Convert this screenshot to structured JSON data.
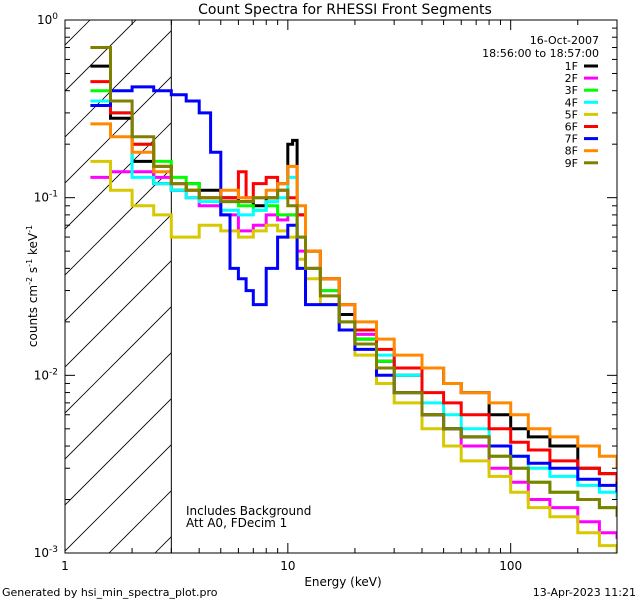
{
  "chart_data": {
    "type": "line",
    "title": "Count Spectra for RHESSI Front Segments",
    "xlabel": "Energy (keV)",
    "ylabel": {
      "prefix": "counts cm",
      "exp1": "-2",
      "mid": " s",
      "exp2": "-1",
      "mid2": " keV",
      "exp3": "-1"
    },
    "xscale": "log",
    "yscale": "log",
    "xlim": [
      1.0,
      300.0
    ],
    "ylim": [
      0.001,
      1.0
    ],
    "x_ticks": [
      {
        "value": 1,
        "label": "1"
      },
      {
        "value": 10,
        "label": "10"
      },
      {
        "value": 100,
        "label": "100"
      }
    ],
    "y_ticks": [
      {
        "value": 1.0,
        "base": "10",
        "exp": "0"
      },
      {
        "value": 0.1,
        "base": "10",
        "exp": "-1"
      },
      {
        "value": 0.01,
        "base": "10",
        "exp": "-2"
      },
      {
        "value": 0.001,
        "base": "10",
        "exp": "-3"
      }
    ],
    "date": "16-Oct-2007",
    "time_range": "18:56:00 to 18:57:00",
    "annotations": [
      "Includes Background",
      "Att A0, FDecim 1"
    ],
    "shaded_region": {
      "from": 1.0,
      "to": 3.0,
      "pattern": "diagonal hatch",
      "boundary_line_at": 3.0
    },
    "legend_position": "top-right",
    "series": [
      {
        "name": "1F",
        "color": "#000000",
        "x": [
          1.3,
          1.6,
          2.0,
          2.5,
          3.0,
          3.5,
          4.0,
          5.0,
          6.0,
          7.0,
          8.0,
          9.0,
          10.0,
          10.5,
          11.0,
          12.0,
          14.0,
          17.0,
          20.0,
          25.0,
          30.0,
          40.0,
          50.0,
          60.0,
          80.0,
          100.0,
          120.0,
          150.0,
          200.0,
          250.0,
          300.0
        ],
        "y": [
          0.55,
          0.28,
          0.16,
          0.12,
          0.11,
          0.12,
          0.11,
          0.1,
          0.095,
          0.09,
          0.1,
          0.12,
          0.2,
          0.21,
          0.08,
          0.05,
          0.035,
          0.022,
          0.016,
          0.012,
          0.01,
          0.011,
          0.009,
          0.008,
          0.006,
          0.005,
          0.0045,
          0.004,
          0.003,
          0.0028,
          0.0024
        ]
      },
      {
        "name": "2F",
        "color": "#ff00ff",
        "x": [
          1.3,
          1.6,
          2.0,
          2.5,
          3.0,
          3.5,
          4.0,
          5.0,
          6.0,
          7.0,
          8.0,
          9.0,
          10.0,
          11.0,
          12.0,
          14.0,
          17.0,
          20.0,
          25.0,
          30.0,
          40.0,
          50.0,
          60.0,
          80.0,
          100.0,
          120.0,
          150.0,
          200.0,
          250.0,
          300.0
        ],
        "y": [
          0.13,
          0.14,
          0.14,
          0.13,
          0.12,
          0.1,
          0.09,
          0.08,
          0.065,
          0.07,
          0.08,
          0.075,
          0.08,
          0.05,
          0.04,
          0.03,
          0.025,
          0.017,
          0.012,
          0.008,
          0.006,
          0.005,
          0.004,
          0.003,
          0.0025,
          0.002,
          0.0018,
          0.0015,
          0.0013,
          0.0012
        ]
      },
      {
        "name": "3F",
        "color": "#00ff00",
        "x": [
          1.3,
          1.6,
          2.0,
          2.5,
          3.0,
          3.5,
          4.0,
          5.0,
          6.0,
          7.0,
          8.0,
          9.0,
          10.0,
          11.0,
          12.0,
          14.0,
          17.0,
          20.0,
          25.0,
          30.0,
          40.0,
          50.0,
          60.0,
          80.0,
          100.0,
          120.0,
          150.0,
          200.0,
          250.0,
          300.0
        ],
        "y": [
          0.4,
          0.3,
          0.2,
          0.16,
          0.13,
          0.12,
          0.1,
          0.095,
          0.09,
          0.085,
          0.09,
          0.08,
          0.08,
          0.06,
          0.04,
          0.03,
          0.02,
          0.016,
          0.012,
          0.008,
          0.006,
          0.005,
          0.0045,
          0.0035,
          0.003,
          0.0025,
          0.0022,
          0.002,
          0.0018,
          0.0016
        ]
      },
      {
        "name": "4F",
        "color": "#00ffff",
        "x": [
          1.3,
          1.6,
          2.0,
          2.5,
          3.0,
          3.5,
          4.0,
          5.0,
          6.0,
          7.0,
          8.0,
          9.0,
          10.0,
          11.0,
          12.0,
          14.0,
          17.0,
          20.0,
          25.0,
          30.0,
          40.0,
          50.0,
          60.0,
          80.0,
          100.0,
          120.0,
          150.0,
          200.0,
          250.0,
          300.0
        ],
        "y": [
          0.35,
          0.3,
          0.13,
          0.12,
          0.11,
          0.1,
          0.095,
          0.085,
          0.08,
          0.085,
          0.095,
          0.1,
          0.13,
          0.08,
          0.05,
          0.035,
          0.025,
          0.018,
          0.013,
          0.01,
          0.007,
          0.006,
          0.005,
          0.004,
          0.0035,
          0.003,
          0.0027,
          0.0024,
          0.0022,
          0.002
        ]
      },
      {
        "name": "5F",
        "color": "#d8c800",
        "x": [
          1.3,
          1.6,
          2.0,
          2.5,
          3.0,
          3.5,
          4.0,
          5.0,
          6.0,
          7.0,
          8.0,
          9.0,
          10.0,
          11.0,
          12.0,
          14.0,
          17.0,
          20.0,
          25.0,
          30.0,
          40.0,
          50.0,
          60.0,
          80.0,
          100.0,
          120.0,
          150.0,
          200.0,
          250.0,
          300.0
        ],
        "y": [
          0.16,
          0.11,
          0.09,
          0.08,
          0.06,
          0.06,
          0.07,
          0.065,
          0.06,
          0.065,
          0.07,
          0.065,
          0.06,
          0.045,
          0.035,
          0.025,
          0.018,
          0.013,
          0.009,
          0.007,
          0.005,
          0.004,
          0.0033,
          0.0027,
          0.0022,
          0.0018,
          0.0016,
          0.0013,
          0.0011,
          0.001
        ]
      },
      {
        "name": "6F",
        "color": "#ff0000",
        "x": [
          1.3,
          1.6,
          2.0,
          2.5,
          3.0,
          3.5,
          4.0,
          5.0,
          6.0,
          6.5,
          7.0,
          8.0,
          9.0,
          10.0,
          11.0,
          12.0,
          14.0,
          17.0,
          20.0,
          25.0,
          30.0,
          40.0,
          50.0,
          60.0,
          80.0,
          100.0,
          120.0,
          150.0,
          200.0,
          250.0,
          300.0
        ],
        "y": [
          0.45,
          0.3,
          0.2,
          0.15,
          0.12,
          0.11,
          0.1,
          0.1,
          0.14,
          0.1,
          0.12,
          0.13,
          0.11,
          0.1,
          0.08,
          0.05,
          0.035,
          0.025,
          0.018,
          0.014,
          0.011,
          0.008,
          0.007,
          0.006,
          0.005,
          0.0042,
          0.0038,
          0.0033,
          0.003,
          0.0028,
          0.0025
        ]
      },
      {
        "name": "7F",
        "color": "#0000ff",
        "x": [
          1.3,
          1.6,
          2.0,
          2.5,
          3.0,
          3.5,
          4.0,
          4.5,
          5.0,
          5.5,
          6.0,
          6.5,
          7.0,
          8.0,
          9.0,
          10.0,
          11.0,
          12.0,
          14.0,
          17.0,
          20.0,
          25.0,
          30.0,
          40.0,
          50.0,
          60.0,
          80.0,
          100.0,
          120.0,
          150.0,
          200.0,
          250.0,
          300.0
        ],
        "y": [
          0.33,
          0.4,
          0.42,
          0.4,
          0.38,
          0.35,
          0.3,
          0.18,
          0.08,
          0.04,
          0.035,
          0.03,
          0.025,
          0.04,
          0.06,
          0.07,
          0.04,
          0.025,
          0.025,
          0.018,
          0.014,
          0.01,
          0.008,
          0.006,
          0.005,
          0.0045,
          0.004,
          0.0035,
          0.0032,
          0.003,
          0.0026,
          0.0024,
          0.0022
        ]
      },
      {
        "name": "8F",
        "color": "#ff8800",
        "x": [
          1.3,
          1.6,
          2.0,
          2.5,
          3.0,
          3.5,
          4.0,
          5.0,
          6.0,
          7.0,
          8.0,
          9.0,
          10.0,
          11.0,
          12.0,
          14.0,
          17.0,
          20.0,
          25.0,
          30.0,
          40.0,
          50.0,
          60.0,
          80.0,
          100.0,
          120.0,
          150.0,
          200.0,
          250.0,
          300.0
        ],
        "y": [
          0.26,
          0.22,
          0.18,
          0.14,
          0.12,
          0.11,
          0.1,
          0.11,
          0.1,
          0.1,
          0.11,
          0.12,
          0.15,
          0.09,
          0.05,
          0.035,
          0.025,
          0.02,
          0.016,
          0.013,
          0.011,
          0.009,
          0.008,
          0.007,
          0.006,
          0.005,
          0.0045,
          0.004,
          0.0035,
          0.003
        ]
      },
      {
        "name": "9F",
        "color": "#808000",
        "x": [
          1.3,
          1.6,
          2.0,
          2.5,
          3.0,
          3.5,
          4.0,
          5.0,
          6.0,
          7.0,
          8.0,
          9.0,
          10.0,
          11.0,
          12.0,
          14.0,
          17.0,
          20.0,
          25.0,
          30.0,
          40.0,
          50.0,
          60.0,
          80.0,
          100.0,
          120.0,
          150.0,
          200.0,
          250.0,
          300.0
        ],
        "y": [
          0.7,
          0.35,
          0.22,
          0.15,
          0.12,
          0.11,
          0.1,
          0.095,
          0.095,
          0.1,
          0.1,
          0.11,
          0.09,
          0.06,
          0.04,
          0.028,
          0.02,
          0.015,
          0.011,
          0.008,
          0.006,
          0.005,
          0.0045,
          0.0035,
          0.003,
          0.0025,
          0.0022,
          0.002,
          0.0018,
          0.0016
        ]
      }
    ]
  },
  "footer": {
    "generated_by": "Generated by hsi_min_spectra_plot.pro",
    "timestamp": "13-Apr-2023 11:21"
  }
}
